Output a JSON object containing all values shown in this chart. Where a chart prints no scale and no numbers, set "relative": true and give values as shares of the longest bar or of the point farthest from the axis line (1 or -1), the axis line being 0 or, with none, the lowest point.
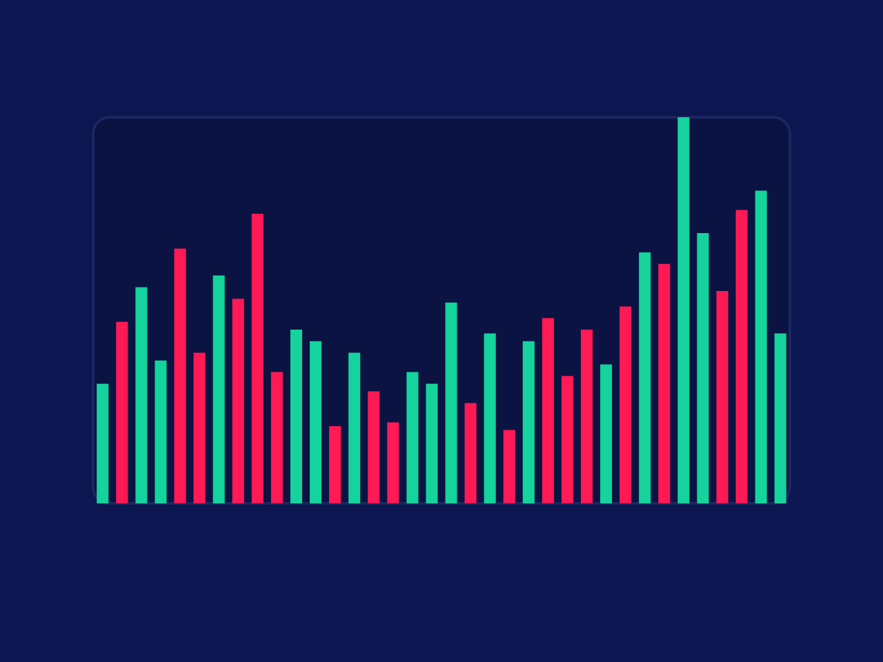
{
  "chart_data": {
    "type": "bar",
    "relative": true,
    "categories": [
      null,
      null,
      null,
      null,
      null,
      null,
      null,
      null,
      null,
      null,
      null,
      null,
      null,
      null,
      null,
      null,
      null,
      null,
      null,
      null,
      null,
      null,
      null,
      null,
      null,
      null,
      null,
      null,
      null,
      null,
      null,
      null,
      null,
      null,
      null,
      null
    ],
    "values": [
      0.31,
      0.47,
      0.56,
      0.37,
      0.66,
      0.39,
      0.59,
      0.53,
      0.75,
      0.34,
      0.45,
      0.42,
      0.2,
      0.39,
      0.29,
      0.21,
      0.34,
      0.31,
      0.52,
      0.26,
      0.44,
      0.19,
      0.42,
      0.48,
      0.33,
      0.45,
      0.36,
      0.51,
      0.65,
      0.62,
      1,
      0.7,
      0.55,
      0.76,
      0.81,
      0.44
    ],
    "colors": [
      "#14d39c",
      "#ff1a55",
      "#14d39c",
      "#14d39c",
      "#ff1a55",
      "#ff1a55",
      "#14d39c",
      "#ff1a55",
      "#ff1a55",
      "#ff1a55",
      "#14d39c",
      "#14d39c",
      "#ff1a55",
      "#14d39c",
      "#ff1a55",
      "#ff1a55",
      "#14d39c",
      "#14d39c",
      "#14d39c",
      "#ff1a55",
      "#14d39c",
      "#ff1a55",
      "#14d39c",
      "#ff1a55",
      "#ff1a55",
      "#ff1a55",
      "#14d39c",
      "#ff1a55",
      "#14d39c",
      "#ff1a55",
      "#14d39c",
      "#14d39c",
      "#ff1a55",
      "#ff1a55",
      "#14d39c",
      "#14d39c"
    ]
  }
}
